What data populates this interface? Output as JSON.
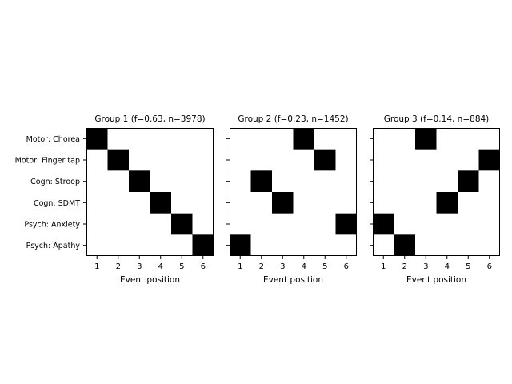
{
  "chart_data": [
    {
      "type": "heatmap",
      "title": "Group 1 (f=0.63, n=3978)",
      "xlabel": "Event position",
      "x_ticks": [
        "1",
        "2",
        "3",
        "4",
        "5",
        "6"
      ],
      "y_labels": [
        "Motor: Chorea",
        "Motor: Finger tap",
        "Cogn: Stroop",
        "Cogn: SDMT",
        "Psych: Anxiety",
        "Psych: Apathy"
      ],
      "positions": [
        1,
        2,
        3,
        4,
        5,
        6
      ],
      "cmap": {
        "filled": "#000000",
        "empty": "#ffffff"
      }
    },
    {
      "type": "heatmap",
      "title": "Group 2 (f=0.23, n=1452)",
      "xlabel": "Event position",
      "x_ticks": [
        "1",
        "2",
        "3",
        "4",
        "5",
        "6"
      ],
      "y_labels": [
        "Motor: Chorea",
        "Motor: Finger tap",
        "Cogn: Stroop",
        "Cogn: SDMT",
        "Psych: Anxiety",
        "Psych: Apathy"
      ],
      "positions": [
        4,
        5,
        2,
        3,
        6,
        1
      ],
      "cmap": {
        "filled": "#000000",
        "empty": "#ffffff"
      }
    },
    {
      "type": "heatmap",
      "title": "Group 3 (f=0.14, n=884)",
      "xlabel": "Event position",
      "x_ticks": [
        "1",
        "2",
        "3",
        "4",
        "5",
        "6"
      ],
      "y_labels": [
        "Motor: Chorea",
        "Motor: Finger tap",
        "Cogn: Stroop",
        "Cogn: SDMT",
        "Psych: Anxiety",
        "Psych: Apathy"
      ],
      "positions": [
        3,
        6,
        5,
        4,
        1,
        2
      ],
      "cmap": {
        "filled": "#000000",
        "empty": "#ffffff"
      }
    }
  ]
}
